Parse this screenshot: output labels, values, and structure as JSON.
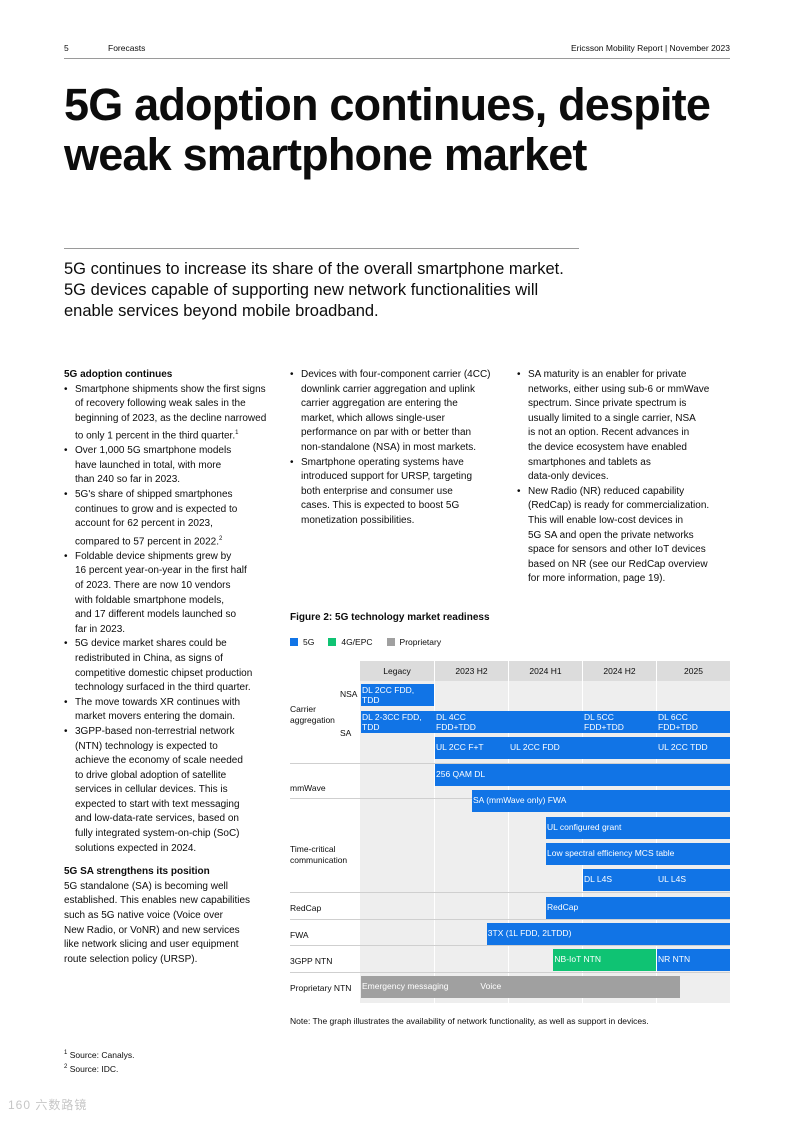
{
  "header": {
    "page_number": "5",
    "section": "Forecasts",
    "report": "Ericsson Mobility Report  |  November 2023"
  },
  "title": {
    "line1": "5G adoption continues, despite",
    "line2": "weak smartphone market"
  },
  "lead": {
    "line1": "5G continues to increase its share of the overall smartphone market.",
    "line2": "5G devices capable of supporting new network functionalities will",
    "line3": "enable services beyond mobile broadband."
  },
  "col1": {
    "heading1": "5G adoption continues",
    "b1": [
      "Smartphone shipments show the first signs",
      "of recovery following weak sales in the",
      "beginning of 2023, as the decline narrowed",
      "to only 1 percent in the third quarter."
    ],
    "b1_sup": "1",
    "b2": [
      "Over 1,000 5G smartphone models",
      "have launched in total, with more",
      "than 240 so far in 2023."
    ],
    "b3": [
      "5G's share of shipped smartphones",
      "continues to grow and is expected to",
      "account for 62 percent in 2023,",
      "compared to 57 percent in 2022."
    ],
    "b3_sup": "2",
    "b4": [
      "Foldable device shipments grew by",
      "16 percent year-on-year in the first half",
      "of 2023. There are now 10 vendors",
      "with foldable smartphone models,",
      "and 17 different models launched so",
      "far in 2023."
    ],
    "b5": [
      "5G device market shares could be",
      "redistributed in China, as signs of",
      "competitive domestic chipset production",
      "technology surfaced in the third quarter."
    ],
    "b6": [
      "The move towards XR continues with",
      "market movers entering the domain."
    ],
    "b7": [
      "3GPP-based non-terrestrial network",
      "(NTN) technology is expected to",
      "achieve the economy of scale needed",
      "to drive global adoption of satellite",
      "services in cellular devices. This is",
      "expected to start with text messaging",
      "and low-data-rate services, based on",
      "fully integrated system-on-chip (SoC)",
      "solutions expected in 2024."
    ],
    "heading2": "5G SA strengthens its position",
    "p1": [
      "5G standalone (SA) is becoming well",
      "established. This enables new capabilities",
      "such as 5G native voice (Voice over",
      "New Radio, or VoNR) and new services",
      "like network slicing and user equipment",
      "route selection policy (URSP)."
    ]
  },
  "col2": {
    "b1": [
      "Devices with four-component carrier (4CC)",
      "downlink carrier aggregation and uplink",
      "carrier aggregation are entering the",
      "market, which allows single-user",
      "performance on par with or better than",
      "non-standalone (NSA) in most markets."
    ],
    "b2": [
      "Smartphone operating systems have",
      "introduced support for URSP, targeting",
      "both enterprise and consumer use",
      "cases. This is expected to boost 5G",
      "monetization possibilities."
    ]
  },
  "col3": {
    "b1": [
      "SA maturity is an enabler for private",
      "networks, either using sub-6 or mmWave",
      "spectrum. Since private spectrum is",
      "usually limited to a single carrier, NSA",
      "is not an option. Recent advances in",
      "the device ecosystem have enabled",
      "smartphones and tablets as",
      "data-only devices."
    ],
    "b2": [
      "New Radio (NR) reduced capability",
      "(RedCap) is ready for commercialization.",
      "This will enable low-cost devices in",
      "5G SA and open the private networks",
      "space for sensors and other IoT devices",
      "based on NR (see our RedCap overview",
      "for more information, page 19)."
    ]
  },
  "figure": {
    "title": "Figure 2: 5G technology market readiness",
    "legend": [
      {
        "label": "5G",
        "color": "#1174e6"
      },
      {
        "label": "4G/EPC",
        "color": "#0fc373"
      },
      {
        "label": "Proprietary",
        "color": "#a0a0a0"
      }
    ],
    "note": "Note: The graph illustrates the availability of network functionality, as well as support in devices."
  },
  "chart_data": {
    "type": "table",
    "columns": [
      "Legacy",
      "2023 H2",
      "2024 H1",
      "2024 H2",
      "2025"
    ],
    "row_labels": {
      "carrier": [
        "Carrier",
        "aggregation"
      ],
      "nsa": "NSA",
      "sa": "SA",
      "mmwave": "mmWave",
      "timecrit": [
        "Time-critical",
        "communication"
      ],
      "redcap": "RedCap",
      "fwa": "FWA",
      "ntn": "3GPP NTN",
      "propntn": "Proprietary NTN"
    },
    "bars": [
      {
        "id": "nsa",
        "start": 0,
        "end": 1,
        "color": "blue",
        "segments": [
          {
            "at": 0,
            "lines": [
              "DL 2CC FDD,",
              "TDD"
            ]
          }
        ]
      },
      {
        "id": "sa1",
        "start": 0,
        "end": 5,
        "color": "blue",
        "segments": [
          {
            "at": 0,
            "lines": [
              "DL 2-3CC FDD,",
              "TDD"
            ]
          },
          {
            "at": 1,
            "lines": [
              "DL 4CC",
              "FDD+TDD"
            ]
          },
          {
            "at": 3,
            "lines": [
              "DL 5CC",
              "FDD+TDD"
            ]
          },
          {
            "at": 4,
            "lines": [
              "DL 6CC",
              "FDD+TDD"
            ]
          }
        ]
      },
      {
        "id": "sa2",
        "start": 1,
        "end": 5,
        "color": "blue",
        "segments": [
          {
            "at": 1,
            "lines": [
              "UL 2CC F+T"
            ]
          },
          {
            "at": 2,
            "lines": [
              "UL 2CC FDD"
            ]
          },
          {
            "at": 4,
            "lines": [
              "UL 2CC TDD"
            ]
          }
        ]
      },
      {
        "id": "mm1",
        "start": 1,
        "end": 5,
        "color": "blue",
        "segments": [
          {
            "at": 1,
            "lines": [
              "256 QAM DL"
            ]
          }
        ]
      },
      {
        "id": "mm2",
        "start": 1.5,
        "end": 5,
        "color": "blue",
        "segments": [
          {
            "at": 1.5,
            "lines": [
              "SA (mmWave only) FWA"
            ]
          }
        ]
      },
      {
        "id": "tc1",
        "start": 2.5,
        "end": 5,
        "color": "blue",
        "segments": [
          {
            "at": 2.5,
            "lines": [
              "UL configured grant"
            ]
          }
        ]
      },
      {
        "id": "tc2",
        "start": 2.5,
        "end": 5,
        "color": "blue",
        "segments": [
          {
            "at": 2.5,
            "lines": [
              "Low spectral efficiency MCS table"
            ]
          }
        ]
      },
      {
        "id": "tc3",
        "start": 3,
        "end": 5,
        "color": "blue",
        "segments": [
          {
            "at": 3,
            "lines": [
              "DL L4S"
            ]
          },
          {
            "at": 4,
            "lines": [
              "UL L4S"
            ]
          }
        ]
      },
      {
        "id": "redcap",
        "start": 2.5,
        "end": 5,
        "color": "blue",
        "segments": [
          {
            "at": 2.5,
            "lines": [
              "RedCap"
            ]
          }
        ]
      },
      {
        "id": "fwa",
        "start": 1.7,
        "end": 5,
        "color": "blue",
        "segments": [
          {
            "at": 1.7,
            "lines": [
              "3TX (1L FDD, 2LTDD)"
            ]
          }
        ]
      },
      {
        "id": "ntn_g",
        "start": 2.6,
        "end": 4,
        "color": "green",
        "segments": [
          {
            "at": 2.6,
            "lines": [
              "NB-IoT NTN"
            ]
          }
        ]
      },
      {
        "id": "ntn_b",
        "start": 4,
        "end": 5,
        "color": "blue",
        "segments": [
          {
            "at": 4,
            "lines": [
              "NR NTN"
            ]
          }
        ]
      },
      {
        "id": "prop",
        "start": 0,
        "end": 4.33,
        "color": "grey",
        "segments": [
          {
            "at": 0,
            "lines": [
              "Emergency messaging"
            ]
          },
          {
            "at": 1.6,
            "lines": [
              "Voice"
            ]
          }
        ]
      }
    ]
  },
  "footnotes": {
    "f1": "Source: Canalys.",
    "f1_num": "1",
    "f2": "Source: IDC.",
    "f2_num": "2"
  },
  "watermark": "160 六数路镜"
}
